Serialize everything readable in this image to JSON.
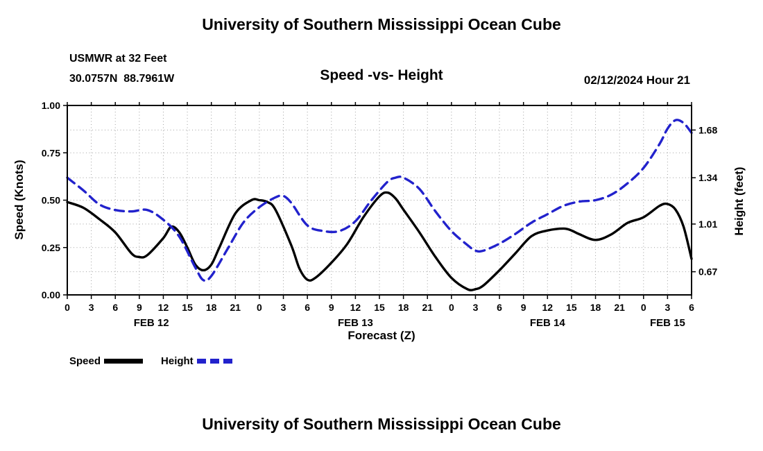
{
  "page": {
    "top_title": "University of Southern Mississippi Ocean Cube",
    "bottom_title": "University of Southern Mississippi Ocean Cube"
  },
  "header": {
    "station": "USMWR at 32 Feet",
    "coordinates": "30.0757N  88.7961W",
    "plot_title": "Speed -vs- Height",
    "datetime": "02/12/2024 Hour 21"
  },
  "legend": {
    "speed_label": "Speed",
    "height_label": "Height"
  },
  "chart_data": {
    "type": "line",
    "title": "Speed -vs- Height",
    "xlabel": "Forecast (Z)",
    "ylabel_left": "Speed (Knots)",
    "ylabel_right": "Height (feet)",
    "grid": true,
    "legend_position": "bottom-left",
    "x_range": [
      0,
      78
    ],
    "x_ticks": {
      "hours": [
        0,
        3,
        6,
        9,
        12,
        15,
        18,
        21,
        24,
        27,
        30,
        33,
        36,
        39,
        42,
        45,
        48,
        51,
        54,
        57,
        60,
        63,
        66,
        69,
        72,
        75,
        78
      ],
      "labels": [
        "0",
        "3",
        "6",
        "9",
        "12",
        "15",
        "18",
        "21",
        "0",
        "3",
        "6",
        "9",
        "12",
        "15",
        "18",
        "21",
        "0",
        "3",
        "6",
        "9",
        "12",
        "15",
        "18",
        "21",
        "0",
        "3",
        "6"
      ]
    },
    "day_labels": [
      {
        "label": "FEB 12",
        "hour": 10.5
      },
      {
        "label": "FEB 13",
        "hour": 36
      },
      {
        "label": "FEB 14",
        "hour": 60
      },
      {
        "label": "FEB 15",
        "hour": 75
      }
    ],
    "left_axis": {
      "min": 0.0,
      "max": 1.0,
      "values": [
        0.0,
        0.25,
        0.5,
        0.75,
        1.0
      ],
      "labels": [
        "0.00",
        "0.25",
        "0.50",
        "0.75",
        "1.00"
      ]
    },
    "right_axis": {
      "min": 0.505,
      "max": 1.855,
      "values": [
        0.67,
        1.01,
        1.34,
        1.68
      ],
      "labels": [
        "0.67",
        "1.01",
        "1.34",
        "1.68"
      ]
    },
    "colors": {
      "speed": "#000000",
      "height": "#2222cc",
      "grid": "#a0a0a0"
    },
    "series": [
      {
        "name": "Speed",
        "axis": "left",
        "unit": "knots",
        "color": "#000000",
        "style": "solid",
        "points": [
          [
            0,
            0.49
          ],
          [
            2,
            0.46
          ],
          [
            4,
            0.4
          ],
          [
            6,
            0.33
          ],
          [
            8,
            0.22
          ],
          [
            9,
            0.2
          ],
          [
            10,
            0.21
          ],
          [
            12,
            0.3
          ],
          [
            13,
            0.36
          ],
          [
            14,
            0.33
          ],
          [
            15,
            0.25
          ],
          [
            16,
            0.16
          ],
          [
            17,
            0.13
          ],
          [
            18,
            0.16
          ],
          [
            19,
            0.25
          ],
          [
            21,
            0.43
          ],
          [
            23,
            0.5
          ],
          [
            24,
            0.5
          ],
          [
            25,
            0.49
          ],
          [
            26,
            0.45
          ],
          [
            28,
            0.26
          ],
          [
            29,
            0.14
          ],
          [
            30,
            0.08
          ],
          [
            31,
            0.09
          ],
          [
            33,
            0.17
          ],
          [
            35,
            0.27
          ],
          [
            37,
            0.41
          ],
          [
            39,
            0.52
          ],
          [
            40,
            0.54
          ],
          [
            41,
            0.51
          ],
          [
            42,
            0.45
          ],
          [
            44,
            0.33
          ],
          [
            46,
            0.2
          ],
          [
            48,
            0.09
          ],
          [
            50,
            0.03
          ],
          [
            51,
            0.03
          ],
          [
            52,
            0.05
          ],
          [
            54,
            0.13
          ],
          [
            56,
            0.22
          ],
          [
            58,
            0.31
          ],
          [
            60,
            0.34
          ],
          [
            62,
            0.35
          ],
          [
            63,
            0.34
          ],
          [
            64,
            0.32
          ],
          [
            66,
            0.29
          ],
          [
            68,
            0.32
          ],
          [
            70,
            0.38
          ],
          [
            72,
            0.41
          ],
          [
            74,
            0.47
          ],
          [
            75,
            0.48
          ],
          [
            76,
            0.45
          ],
          [
            77,
            0.36
          ],
          [
            78,
            0.19
          ]
        ]
      },
      {
        "name": "Height",
        "axis": "right",
        "unit": "feet",
        "color": "#2222cc",
        "style": "dashed",
        "points": [
          [
            0,
            1.34
          ],
          [
            2,
            1.25
          ],
          [
            4,
            1.15
          ],
          [
            6,
            1.11
          ],
          [
            8,
            1.1
          ],
          [
            10,
            1.11
          ],
          [
            12,
            1.04
          ],
          [
            14,
            0.92
          ],
          [
            16,
            0.7
          ],
          [
            17,
            0.61
          ],
          [
            18,
            0.64
          ],
          [
            20,
            0.83
          ],
          [
            22,
            1.02
          ],
          [
            24,
            1.13
          ],
          [
            26,
            1.2
          ],
          [
            27,
            1.21
          ],
          [
            28,
            1.16
          ],
          [
            30,
            1.0
          ],
          [
            32,
            0.96
          ],
          [
            34,
            0.96
          ],
          [
            36,
            1.03
          ],
          [
            38,
            1.18
          ],
          [
            40,
            1.31
          ],
          [
            41,
            1.34
          ],
          [
            42,
            1.34
          ],
          [
            44,
            1.26
          ],
          [
            46,
            1.1
          ],
          [
            48,
            0.96
          ],
          [
            50,
            0.86
          ],
          [
            51,
            0.82
          ],
          [
            52,
            0.82
          ],
          [
            54,
            0.87
          ],
          [
            56,
            0.94
          ],
          [
            58,
            1.02
          ],
          [
            60,
            1.08
          ],
          [
            62,
            1.14
          ],
          [
            64,
            1.17
          ],
          [
            66,
            1.18
          ],
          [
            68,
            1.22
          ],
          [
            70,
            1.3
          ],
          [
            72,
            1.41
          ],
          [
            74,
            1.58
          ],
          [
            75,
            1.69
          ],
          [
            76,
            1.75
          ],
          [
            77,
            1.73
          ],
          [
            78,
            1.66
          ]
        ]
      }
    ]
  }
}
